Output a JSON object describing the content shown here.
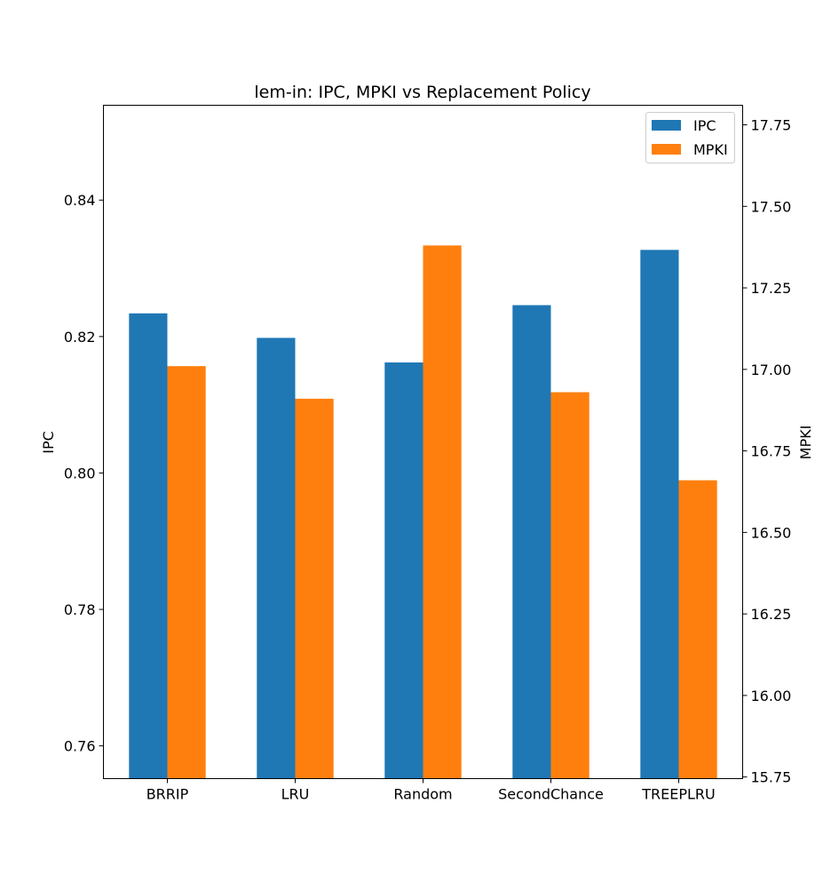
{
  "chart_data": {
    "type": "bar",
    "title": "lem-in: IPC, MPKI vs Replacement Policy",
    "categories": [
      "BRRIP",
      "LRU",
      "Random",
      "SecondChance",
      "TREEPLRU"
    ],
    "series": [
      {
        "name": "IPC",
        "axis": "left",
        "color": "#1f77b4",
        "values": [
          0.8234,
          0.8198,
          0.8162,
          0.8246,
          0.8327
        ]
      },
      {
        "name": "MPKI",
        "axis": "right",
        "color": "#ff7f0e",
        "values": [
          17.01,
          16.91,
          17.38,
          16.93,
          16.66
        ]
      }
    ],
    "ylabel_left": "IPC",
    "ylabel_right": "MPKI",
    "ylim_left": [
      0.7552,
      0.8539
    ],
    "ylim_right": [
      15.745,
      17.81
    ],
    "yticks_left": [
      "0.76",
      "0.78",
      "0.80",
      "0.82",
      "0.84"
    ],
    "yticks_right": [
      "15.75",
      "16.00",
      "16.25",
      "16.50",
      "16.75",
      "17.00",
      "17.25",
      "17.50",
      "17.75"
    ],
    "grid": false,
    "legend_position": "top-right"
  }
}
